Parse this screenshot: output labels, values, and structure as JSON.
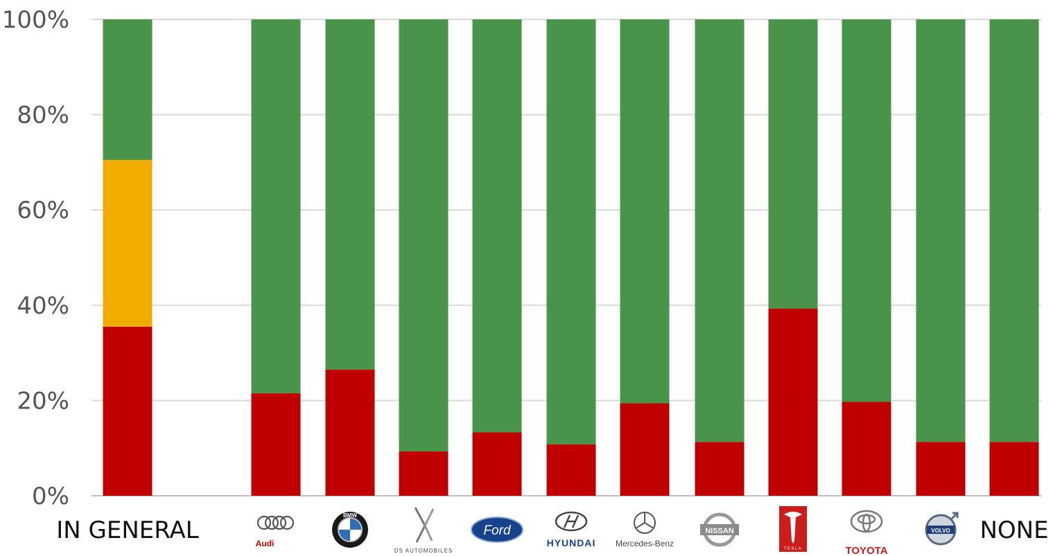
{
  "chart_data": {
    "type": "bar",
    "stacked": true,
    "categories": [
      "IN GENERAL",
      "Audi",
      "BMW",
      "DS AUTOMOBILES",
      "Ford",
      "HYUNDAI",
      "Mercedes-Benz",
      "NISSAN",
      "TESLA",
      "TOYOTA",
      "VOLVO",
      "NONE"
    ],
    "series": [
      {
        "color": "#c00000",
        "values": [
          35.5,
          21.5,
          26.5,
          9.3,
          13.3,
          10.8,
          19.4,
          11.3,
          39.3,
          19.7,
          11.3,
          11.3
        ]
      },
      {
        "color": "#f0ad00",
        "values": [
          35.0,
          0,
          0,
          0,
          0,
          0,
          0,
          0,
          0,
          0,
          0,
          0
        ]
      },
      {
        "color": "#4a934a",
        "values": [
          29.5,
          78.5,
          73.5,
          90.7,
          86.7,
          89.2,
          80.6,
          88.7,
          60.7,
          80.3,
          88.7,
          88.7
        ]
      }
    ],
    "yticks": [
      "0%",
      "20%",
      "40%",
      "60%",
      "80%",
      "100%"
    ],
    "ylim": [
      0,
      100
    ],
    "grid": true,
    "category_display": [
      {
        "kind": "text",
        "text": "IN GENERAL"
      },
      {
        "kind": "logo",
        "icon": "audi-logo-icon",
        "text": "Audi"
      },
      {
        "kind": "logo",
        "icon": "bmw-logo-icon",
        "text": "BMW"
      },
      {
        "kind": "logo",
        "icon": "ds-logo-icon",
        "text": "DS AUTOMOBILES"
      },
      {
        "kind": "logo",
        "icon": "ford-logo-icon",
        "text": "Ford"
      },
      {
        "kind": "logo",
        "icon": "hyundai-logo-icon",
        "text": "HYUNDAI"
      },
      {
        "kind": "logo",
        "icon": "mercedes-logo-icon",
        "text": "Mercedes-Benz"
      },
      {
        "kind": "logo",
        "icon": "nissan-logo-icon",
        "text": "NISSAN"
      },
      {
        "kind": "logo",
        "icon": "tesla-logo-icon",
        "text": "TESLA"
      },
      {
        "kind": "logo",
        "icon": "toyota-logo-icon",
        "text": "TOYOTA"
      },
      {
        "kind": "logo",
        "icon": "volvo-logo-icon",
        "text": "VOLVO"
      },
      {
        "kind": "text",
        "text": "NONE"
      }
    ]
  }
}
